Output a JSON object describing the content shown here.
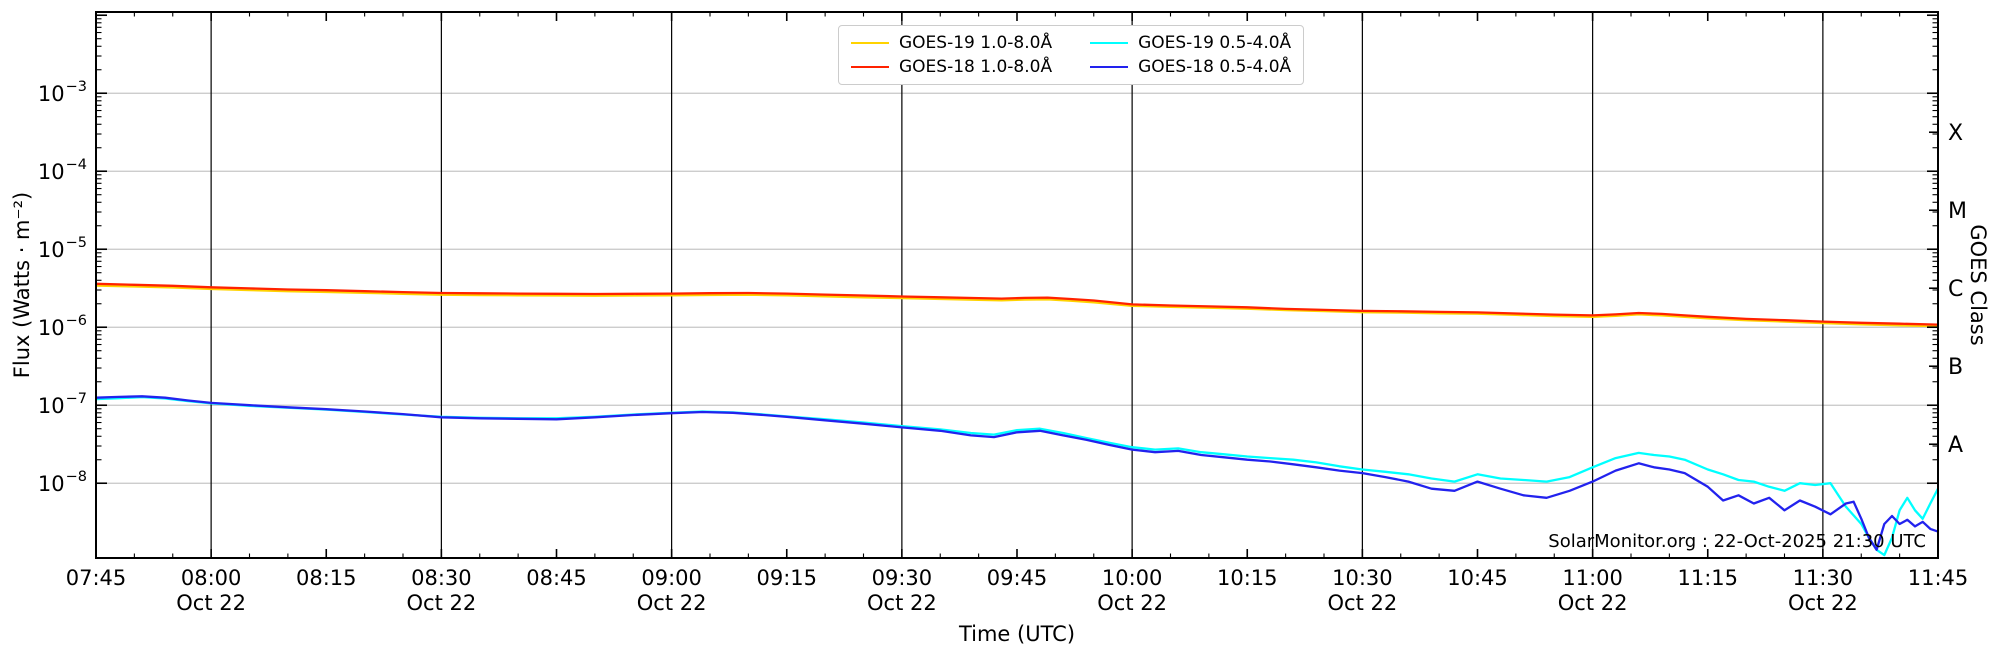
{
  "chart_data": {
    "type": "line",
    "title": "",
    "xlabel": "Time (UTC)",
    "ylabel_left": "Flux (Watts · m⁻²)",
    "ylabel_right": "GOES Class",
    "annotation": "SolarMonitor.org : 22-Oct-2025 21:30 UTC",
    "date_label": "Oct 22",
    "x_unit": "minutes since 07:45 UTC on 22-Oct-2025",
    "x_range": [
      0,
      240
    ],
    "y_scale": "log",
    "ylim": [
      1.1e-09,
      0.011
    ],
    "grid": {
      "vertical_every_min": 30,
      "horizontal_decades": [
        -8,
        -7,
        -6,
        -5,
        -4,
        -3
      ],
      "vertical_color": "#000000",
      "horizontal_color": "#c6c6c6"
    },
    "legend_position": "top-center",
    "x_ticks": [
      {
        "t": 0,
        "label": "07:45"
      },
      {
        "t": 15,
        "label": "08:00",
        "sub": "Oct 22"
      },
      {
        "t": 30,
        "label": "08:15"
      },
      {
        "t": 45,
        "label": "08:30",
        "sub": "Oct 22"
      },
      {
        "t": 60,
        "label": "08:45"
      },
      {
        "t": 75,
        "label": "09:00",
        "sub": "Oct 22"
      },
      {
        "t": 90,
        "label": "09:15"
      },
      {
        "t": 105,
        "label": "09:30",
        "sub": "Oct 22"
      },
      {
        "t": 120,
        "label": "09:45"
      },
      {
        "t": 135,
        "label": "10:00",
        "sub": "Oct 22"
      },
      {
        "t": 150,
        "label": "10:15"
      },
      {
        "t": 165,
        "label": "10:30",
        "sub": "Oct 22"
      },
      {
        "t": 180,
        "label": "10:45"
      },
      {
        "t": 195,
        "label": "11:00",
        "sub": "Oct 22"
      },
      {
        "t": 210,
        "label": "11:15"
      },
      {
        "t": 225,
        "label": "11:30",
        "sub": "Oct 22"
      },
      {
        "t": 240,
        "label": "11:45"
      }
    ],
    "y_ticks_exponents": [
      -3,
      -4,
      -5,
      -6,
      -7,
      -8
    ],
    "goes_class_ticks": [
      {
        "label": "X",
        "log10_flux": -3.5
      },
      {
        "label": "M",
        "log10_flux": -4.5
      },
      {
        "label": "C",
        "log10_flux": -5.5
      },
      {
        "label": "B",
        "log10_flux": -6.5
      },
      {
        "label": "A",
        "log10_flux": -7.5
      }
    ],
    "series": [
      {
        "name": "GOES-19 1.0-8.0Å",
        "color": "#ffd300",
        "points": [
          [
            0,
            3.42e-06
          ],
          [
            5,
            3.33e-06
          ],
          [
            10,
            3.23e-06
          ],
          [
            15,
            3.09e-06
          ],
          [
            20,
            2.99e-06
          ],
          [
            25,
            2.9e-06
          ],
          [
            30,
            2.83e-06
          ],
          [
            35,
            2.76e-06
          ],
          [
            40,
            2.68e-06
          ],
          [
            45,
            2.61e-06
          ],
          [
            50,
            2.58e-06
          ],
          [
            55,
            2.57e-06
          ],
          [
            60,
            2.55e-06
          ],
          [
            65,
            2.54e-06
          ],
          [
            70,
            2.55e-06
          ],
          [
            75,
            2.57e-06
          ],
          [
            80,
            2.59e-06
          ],
          [
            85,
            2.61e-06
          ],
          [
            90,
            2.57e-06
          ],
          [
            95,
            2.49e-06
          ],
          [
            100,
            2.42e-06
          ],
          [
            105,
            2.36e-06
          ],
          [
            110,
            2.3e-06
          ],
          [
            115,
            2.24e-06
          ],
          [
            118,
            2.21e-06
          ],
          [
            121,
            2.26e-06
          ],
          [
            124,
            2.28e-06
          ],
          [
            127,
            2.19e-06
          ],
          [
            130,
            2.09e-06
          ],
          [
            135,
            1.88e-06
          ],
          [
            140,
            1.83e-06
          ],
          [
            145,
            1.78e-06
          ],
          [
            150,
            1.73e-06
          ],
          [
            155,
            1.66e-06
          ],
          [
            160,
            1.61e-06
          ],
          [
            165,
            1.56e-06
          ],
          [
            170,
            1.54e-06
          ],
          [
            175,
            1.51e-06
          ],
          [
            180,
            1.49e-06
          ],
          [
            185,
            1.44e-06
          ],
          [
            190,
            1.39e-06
          ],
          [
            195,
            1.36e-06
          ],
          [
            198,
            1.4e-06
          ],
          [
            201,
            1.46e-06
          ],
          [
            204,
            1.42e-06
          ],
          [
            207,
            1.36e-06
          ],
          [
            210,
            1.3e-06
          ],
          [
            215,
            1.23e-06
          ],
          [
            220,
            1.18e-06
          ],
          [
            225,
            1.13e-06
          ],
          [
            230,
            1.09e-06
          ],
          [
            235,
            1.06e-06
          ],
          [
            240,
            1.03e-06
          ]
        ]
      },
      {
        "name": "GOES-19 0.5-4.0Å",
        "color": "#00ffff",
        "points": [
          [
            0,
            1.2e-07
          ],
          [
            3,
            1.23e-07
          ],
          [
            6,
            1.27e-07
          ],
          [
            9,
            1.22e-07
          ],
          [
            12,
            1.13e-07
          ],
          [
            15,
            1.06e-07
          ],
          [
            20,
            9.8e-08
          ],
          [
            25,
            9.3e-08
          ],
          [
            30,
            8.8e-08
          ],
          [
            35,
            8.2e-08
          ],
          [
            40,
            7.6e-08
          ],
          [
            45,
            7.1e-08
          ],
          [
            50,
            6.9e-08
          ],
          [
            55,
            6.8e-08
          ],
          [
            60,
            6.8e-08
          ],
          [
            65,
            7.1e-08
          ],
          [
            70,
            7.6e-08
          ],
          [
            75,
            8e-08
          ],
          [
            79,
            8.3e-08
          ],
          [
            83,
            8.1e-08
          ],
          [
            87,
            7.6e-08
          ],
          [
            90,
            7.2e-08
          ],
          [
            95,
            6.6e-08
          ],
          [
            100,
            6e-08
          ],
          [
            105,
            5.4e-08
          ],
          [
            110,
            4.9e-08
          ],
          [
            114,
            4.4e-08
          ],
          [
            117,
            4.2e-08
          ],
          [
            120,
            4.8e-08
          ],
          [
            123,
            5e-08
          ],
          [
            126,
            4.4e-08
          ],
          [
            129,
            3.8e-08
          ],
          [
            132,
            3.3e-08
          ],
          [
            135,
            2.9e-08
          ],
          [
            138,
            2.7e-08
          ],
          [
            141,
            2.8e-08
          ],
          [
            144,
            2.5e-08
          ],
          [
            147,
            2.35e-08
          ],
          [
            150,
            2.2e-08
          ],
          [
            153,
            2.1e-08
          ],
          [
            156,
            2e-08
          ],
          [
            159,
            1.85e-08
          ],
          [
            162,
            1.65e-08
          ],
          [
            165,
            1.5e-08
          ],
          [
            168,
            1.4e-08
          ],
          [
            171,
            1.3e-08
          ],
          [
            174,
            1.15e-08
          ],
          [
            177,
            1.05e-08
          ],
          [
            180,
            1.3e-08
          ],
          [
            183,
            1.15e-08
          ],
          [
            186,
            1.1e-08
          ],
          [
            189,
            1.05e-08
          ],
          [
            192,
            1.2e-08
          ],
          [
            195,
            1.6e-08
          ],
          [
            198,
            2.1e-08
          ],
          [
            201,
            2.45e-08
          ],
          [
            203,
            2.3e-08
          ],
          [
            205,
            2.2e-08
          ],
          [
            207,
            2e-08
          ],
          [
            210,
            1.5e-08
          ],
          [
            212,
            1.3e-08
          ],
          [
            214,
            1.1e-08
          ],
          [
            216,
            1.05e-08
          ],
          [
            218,
            9e-09
          ],
          [
            220,
            8e-09
          ],
          [
            222,
            1e-08
          ],
          [
            224,
            9.5e-09
          ],
          [
            226,
            1e-08
          ],
          [
            228,
            5e-09
          ],
          [
            230,
            3e-09
          ],
          [
            231,
            2e-09
          ],
          [
            232,
            1.4e-09
          ],
          [
            233,
            1.2e-09
          ],
          [
            234,
            2e-09
          ],
          [
            235,
            4.5e-09
          ],
          [
            236,
            6.5e-09
          ],
          [
            237,
            4.5e-09
          ],
          [
            238,
            3.5e-09
          ],
          [
            239,
            5.5e-09
          ],
          [
            240,
            8.5e-09
          ]
        ]
      },
      {
        "name": "GOES-18 1.0-8.0Å",
        "color": "#ff2200",
        "points": [
          [
            0,
            3.6e-06
          ],
          [
            5,
            3.5e-06
          ],
          [
            10,
            3.4e-06
          ],
          [
            15,
            3.25e-06
          ],
          [
            20,
            3.15e-06
          ],
          [
            25,
            3.05e-06
          ],
          [
            30,
            2.98e-06
          ],
          [
            35,
            2.9e-06
          ],
          [
            40,
            2.82e-06
          ],
          [
            45,
            2.75e-06
          ],
          [
            50,
            2.72e-06
          ],
          [
            55,
            2.7e-06
          ],
          [
            60,
            2.68e-06
          ],
          [
            65,
            2.67e-06
          ],
          [
            70,
            2.68e-06
          ],
          [
            75,
            2.7e-06
          ],
          [
            80,
            2.73e-06
          ],
          [
            85,
            2.75e-06
          ],
          [
            90,
            2.7e-06
          ],
          [
            95,
            2.62e-06
          ],
          [
            100,
            2.55e-06
          ],
          [
            105,
            2.48e-06
          ],
          [
            110,
            2.42e-06
          ],
          [
            115,
            2.36e-06
          ],
          [
            118,
            2.33e-06
          ],
          [
            121,
            2.38e-06
          ],
          [
            124,
            2.4e-06
          ],
          [
            127,
            2.3e-06
          ],
          [
            130,
            2.2e-06
          ],
          [
            135,
            1.96e-06
          ],
          [
            140,
            1.9e-06
          ],
          [
            145,
            1.85e-06
          ],
          [
            150,
            1.8e-06
          ],
          [
            155,
            1.72e-06
          ],
          [
            160,
            1.67e-06
          ],
          [
            165,
            1.62e-06
          ],
          [
            170,
            1.6e-06
          ],
          [
            175,
            1.57e-06
          ],
          [
            180,
            1.55e-06
          ],
          [
            185,
            1.5e-06
          ],
          [
            190,
            1.45e-06
          ],
          [
            195,
            1.42e-06
          ],
          [
            198,
            1.46e-06
          ],
          [
            201,
            1.52e-06
          ],
          [
            204,
            1.48e-06
          ],
          [
            207,
            1.42e-06
          ],
          [
            210,
            1.36e-06
          ],
          [
            215,
            1.28e-06
          ],
          [
            220,
            1.23e-06
          ],
          [
            225,
            1.18e-06
          ],
          [
            230,
            1.14e-06
          ],
          [
            235,
            1.11e-06
          ],
          [
            240,
            1.08e-06
          ]
        ]
      },
      {
        "name": "GOES-18 0.5-4.0Å",
        "color": "#2222ee",
        "points": [
          [
            0,
            1.25e-07
          ],
          [
            3,
            1.28e-07
          ],
          [
            6,
            1.3e-07
          ],
          [
            9,
            1.25e-07
          ],
          [
            12,
            1.15e-07
          ],
          [
            15,
            1.07e-07
          ],
          [
            20,
            1e-07
          ],
          [
            25,
            9.4e-08
          ],
          [
            30,
            8.9e-08
          ],
          [
            35,
            8.3e-08
          ],
          [
            40,
            7.7e-08
          ],
          [
            45,
            7e-08
          ],
          [
            50,
            6.8e-08
          ],
          [
            55,
            6.7e-08
          ],
          [
            60,
            6.6e-08
          ],
          [
            65,
            7e-08
          ],
          [
            70,
            7.5e-08
          ],
          [
            75,
            7.9e-08
          ],
          [
            79,
            8.2e-08
          ],
          [
            83,
            8e-08
          ],
          [
            87,
            7.5e-08
          ],
          [
            90,
            7.1e-08
          ],
          [
            95,
            6.4e-08
          ],
          [
            100,
            5.8e-08
          ],
          [
            105,
            5.2e-08
          ],
          [
            110,
            4.7e-08
          ],
          [
            114,
            4.1e-08
          ],
          [
            117,
            3.9e-08
          ],
          [
            120,
            4.5e-08
          ],
          [
            123,
            4.7e-08
          ],
          [
            126,
            4.1e-08
          ],
          [
            129,
            3.6e-08
          ],
          [
            132,
            3.1e-08
          ],
          [
            135,
            2.7e-08
          ],
          [
            138,
            2.5e-08
          ],
          [
            141,
            2.6e-08
          ],
          [
            144,
            2.3e-08
          ],
          [
            147,
            2.15e-08
          ],
          [
            150,
            2e-08
          ],
          [
            153,
            1.9e-08
          ],
          [
            156,
            1.75e-08
          ],
          [
            159,
            1.6e-08
          ],
          [
            162,
            1.45e-08
          ],
          [
            165,
            1.35e-08
          ],
          [
            168,
            1.2e-08
          ],
          [
            171,
            1.05e-08
          ],
          [
            174,
            8.5e-09
          ],
          [
            177,
            8e-09
          ],
          [
            180,
            1.05e-08
          ],
          [
            183,
            8.5e-09
          ],
          [
            186,
            7e-09
          ],
          [
            189,
            6.5e-09
          ],
          [
            192,
            8e-09
          ],
          [
            195,
            1.05e-08
          ],
          [
            198,
            1.45e-08
          ],
          [
            201,
            1.8e-08
          ],
          [
            203,
            1.6e-08
          ],
          [
            205,
            1.5e-08
          ],
          [
            207,
            1.35e-08
          ],
          [
            210,
            9e-09
          ],
          [
            212,
            6e-09
          ],
          [
            214,
            7e-09
          ],
          [
            216,
            5.5e-09
          ],
          [
            218,
            6.5e-09
          ],
          [
            220,
            4.5e-09
          ],
          [
            222,
            6e-09
          ],
          [
            224,
            5e-09
          ],
          [
            226,
            4e-09
          ],
          [
            228,
            5.5e-09
          ],
          [
            229,
            5.8e-09
          ],
          [
            230,
            3.5e-09
          ],
          [
            231,
            2e-09
          ],
          [
            232,
            1.4e-09
          ],
          [
            233,
            3e-09
          ],
          [
            234,
            3.8e-09
          ],
          [
            235,
            3e-09
          ],
          [
            236,
            3.4e-09
          ],
          [
            237,
            2.8e-09
          ],
          [
            238,
            3.2e-09
          ],
          [
            239,
            2.6e-09
          ],
          [
            240,
            2.4e-09
          ]
        ]
      }
    ],
    "draw_order": [
      0,
      2,
      1,
      3
    ]
  }
}
